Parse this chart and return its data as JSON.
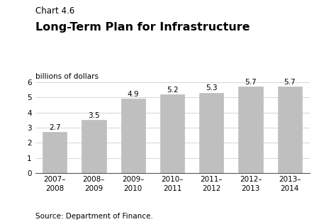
{
  "chart_label": "Chart 4.6",
  "title": "Long-Term Plan for Infrastructure",
  "ylabel": "billions of dollars",
  "source": "Source: Department of Finance.",
  "categories": [
    "2007–\n2008",
    "2008–\n2009",
    "2009–\n2010",
    "2010–\n2011",
    "2011–\n2012",
    "2012–\n2013",
    "2013–\n2014"
  ],
  "values": [
    2.7,
    3.5,
    4.9,
    5.2,
    5.3,
    5.7,
    5.7
  ],
  "bar_color": "#c0bfbf",
  "bar_edge_color": "#c0bfbf",
  "ylim": [
    0,
    6
  ],
  "yticks": [
    0,
    1,
    2,
    3,
    4,
    5,
    6
  ],
  "background_color": "#ffffff",
  "chart_label_fontsize": 8.5,
  "title_fontsize": 11.5,
  "ylabel_fontsize": 7.5,
  "tick_fontsize": 7.5,
  "value_label_fontsize": 7.5,
  "source_fontsize": 7.5,
  "bar_width": 0.62
}
